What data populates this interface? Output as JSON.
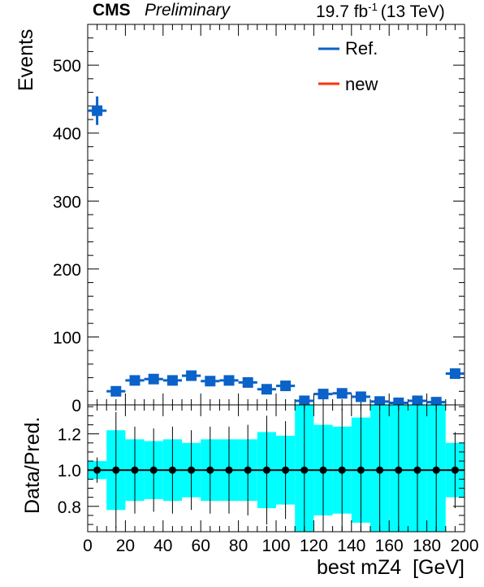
{
  "header": {
    "cms": "CMS",
    "preliminary": "Preliminary",
    "lumi": "19.7 fb",
    "lumi_sup": "-1",
    "energy": "(13 TeV)"
  },
  "legend": {
    "ref": "Ref.",
    "new": "new"
  },
  "colors": {
    "ref": "#0b62c8",
    "new": "#ff3300",
    "band": "#00ffff"
  },
  "chart_data": [
    {
      "type": "scatter",
      "title": "",
      "xlabel": "best mZ4  [GeV]",
      "ylabel": "Events",
      "xlim": [
        0,
        200
      ],
      "ylim": [
        0,
        560
      ],
      "grid": false,
      "legend_position": "top-right",
      "x_ticks": [
        0,
        20,
        40,
        60,
        80,
        100,
        120,
        140,
        160,
        180,
        200
      ],
      "y_ticks": [
        0,
        100,
        200,
        300,
        400,
        500
      ],
      "bin_width": 10,
      "series": [
        {
          "name": "Ref.",
          "x": [
            5,
            15,
            25,
            35,
            45,
            55,
            65,
            75,
            85,
            95,
            105,
            115,
            125,
            135,
            145,
            155,
            165,
            175,
            185,
            195
          ],
          "values": [
            433,
            20,
            36,
            38,
            36,
            43,
            35,
            36,
            33,
            23,
            28,
            6,
            16,
            17,
            12,
            5,
            3,
            6,
            4,
            46
          ],
          "errors": [
            21,
            4.5,
            6,
            6.2,
            6,
            6.6,
            5.9,
            6,
            5.7,
            4.8,
            5.3,
            2.4,
            4,
            4.1,
            3.5,
            2.2,
            1.7,
            2.4,
            2,
            6.8
          ]
        },
        {
          "name": "new",
          "x": [],
          "values": []
        }
      ]
    },
    {
      "type": "scatter",
      "title": "",
      "xlabel": "best mZ4  [GeV]",
      "ylabel": "Data/Pred.",
      "xlim": [
        0,
        200
      ],
      "ylim": [
        0.66,
        1.36
      ],
      "grid": false,
      "x_ticks": [
        0,
        20,
        40,
        60,
        80,
        100,
        120,
        140,
        160,
        180,
        200
      ],
      "y_ticks": [
        0.8,
        1.0,
        1.2
      ],
      "y_tick_labels": [
        "0.8",
        "1.0",
        "1.2"
      ],
      "bin_width": 10,
      "series": [
        {
          "name": "ratio",
          "x": [
            5,
            15,
            25,
            35,
            45,
            55,
            65,
            75,
            85,
            95,
            105,
            115,
            125,
            135,
            145,
            155,
            165,
            175,
            185,
            195
          ],
          "values": [
            1,
            1,
            1,
            1,
            1,
            1,
            1,
            1,
            1,
            1,
            1,
            1,
            1,
            1,
            1,
            1,
            1,
            1,
            1,
            1
          ],
          "errors": [
            0.07,
            0.32,
            0.24,
            0.23,
            0.24,
            0.22,
            0.24,
            0.24,
            0.25,
            0.3,
            0.27,
            0.58,
            0.35,
            0.34,
            0.41,
            0.63,
            0.82,
            0.58,
            0.71,
            0.21
          ]
        },
        {
          "name": "uncertainty band",
          "x": [
            5,
            15,
            25,
            35,
            45,
            55,
            65,
            75,
            85,
            95,
            105,
            115,
            125,
            135,
            145,
            155,
            165,
            175,
            185,
            195
          ],
          "values": [
            0.05,
            0.22,
            0.17,
            0.16,
            0.17,
            0.15,
            0.17,
            0.17,
            0.17,
            0.21,
            0.19,
            0.41,
            0.25,
            0.24,
            0.29,
            0.45,
            0.58,
            0.41,
            0.5,
            0.15
          ]
        }
      ]
    }
  ]
}
